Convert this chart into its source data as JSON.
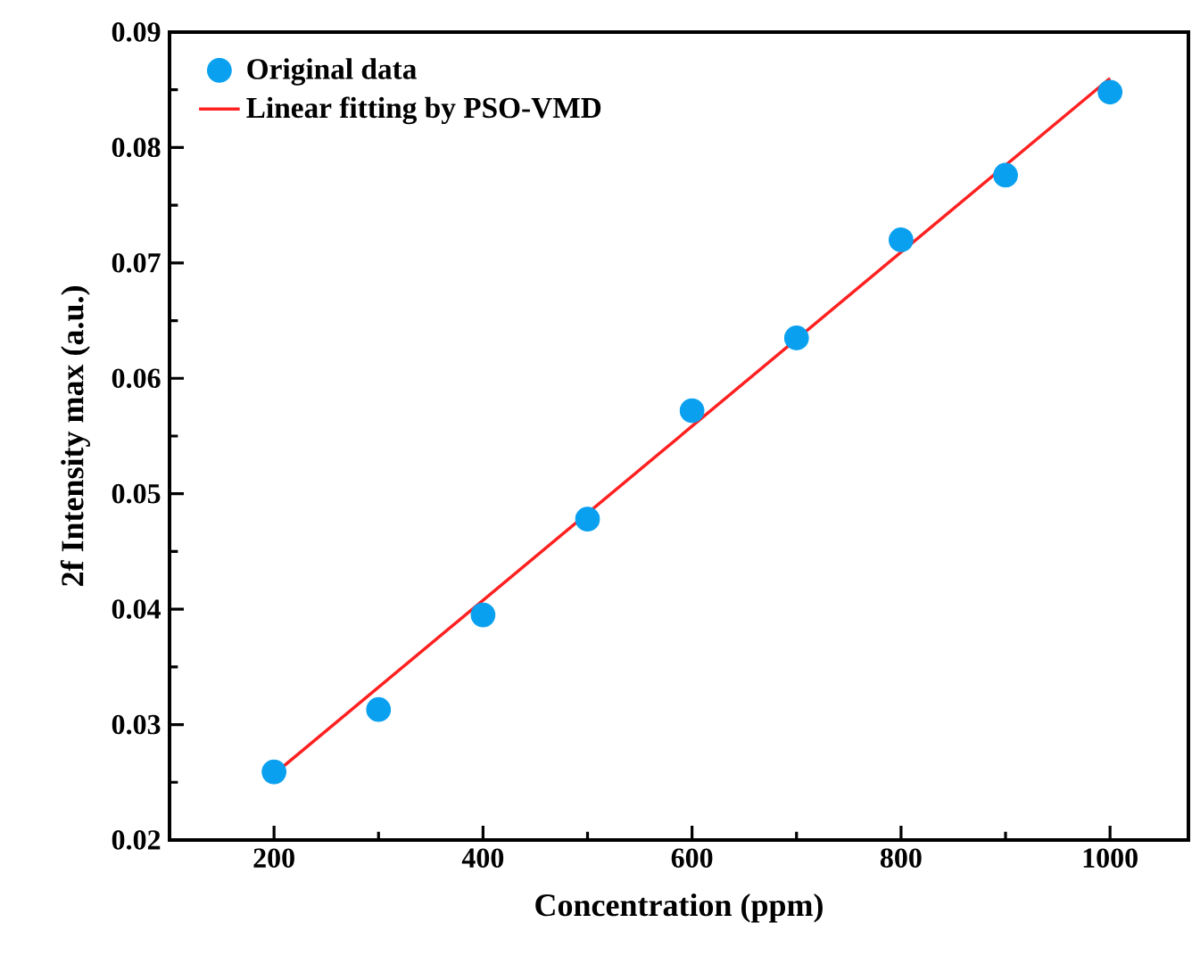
{
  "chart_data": {
    "type": "scatter",
    "xlabel": "Concentration (ppm)",
    "ylabel": "2f Intensity max (a.u.)",
    "xlim": [
      100,
      1075
    ],
    "ylim": [
      0.02,
      0.09
    ],
    "xticks": [
      200,
      400,
      600,
      800,
      1000
    ],
    "yticks": [
      0.02,
      0.03,
      0.04,
      0.05,
      0.06,
      0.07,
      0.08,
      0.09
    ],
    "legend": "top left",
    "grid": false,
    "series": [
      {
        "name": "Original data",
        "color": "#0aa0f0",
        "marker": "circle",
        "x": [
          200,
          300,
          400,
          500,
          600,
          700,
          800,
          900,
          1000
        ],
        "values": [
          0.0259,
          0.0313,
          0.0395,
          0.0478,
          0.0572,
          0.0635,
          0.072,
          0.0776,
          0.0848
        ]
      },
      {
        "name": "Linear fitting by PSO-VMD",
        "type": "line",
        "color": "#ff2020",
        "marker": "none",
        "line_style": "solid",
        "x": [
          200,
          1000
        ],
        "values": [
          0.0257,
          0.086
        ]
      }
    ]
  }
}
